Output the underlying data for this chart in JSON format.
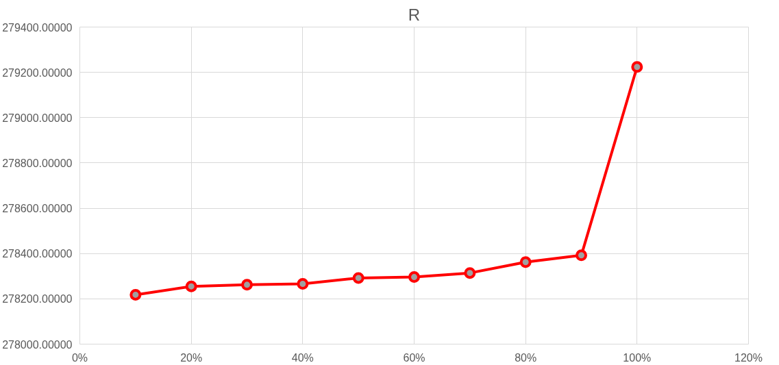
{
  "chart_data": {
    "type": "line",
    "title": "R",
    "x": [
      0.1,
      0.2,
      0.3,
      0.4,
      0.5,
      0.6,
      0.7,
      0.8,
      0.9,
      1.0
    ],
    "series": [
      {
        "color": "#ff0000",
        "values": [
          278218,
          278255,
          278262,
          278266,
          278292,
          278296,
          278314,
          278362,
          278392,
          279224
        ]
      }
    ],
    "xlim": [
      0,
      1.2
    ],
    "xticks": [
      {
        "value": 0,
        "label": "0%"
      },
      {
        "value": 0.2,
        "label": "20%"
      },
      {
        "value": 0.4,
        "label": "40%"
      },
      {
        "value": 0.6,
        "label": "60%"
      },
      {
        "value": 0.8,
        "label": "80%"
      },
      {
        "value": 1.0,
        "label": "100%"
      },
      {
        "value": 1.2,
        "label": "120%"
      }
    ],
    "ylim": [
      278000,
      279400
    ],
    "yticks": [
      {
        "value": 278000,
        "label": "278000.00000"
      },
      {
        "value": 278200,
        "label": "278200.00000"
      },
      {
        "value": 278400,
        "label": "278400.00000"
      },
      {
        "value": 278600,
        "label": "278600.00000"
      },
      {
        "value": 278800,
        "label": "278800.00000"
      },
      {
        "value": 279000,
        "label": "279000.00000"
      },
      {
        "value": 279200,
        "label": "279200.00000"
      },
      {
        "value": 279400,
        "label": "279400.00000"
      }
    ],
    "grid": true,
    "marker": "circle",
    "line_style": "solid"
  }
}
